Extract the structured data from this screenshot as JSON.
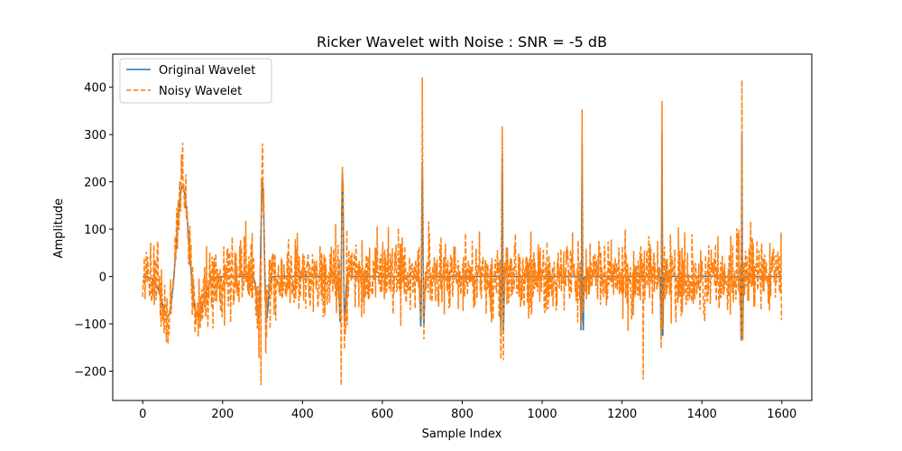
{
  "chart_data": {
    "type": "line",
    "title": "Ricker Wavelet with Noise : SNR = -5 dB",
    "xlabel": "Sample Index",
    "ylabel": "Amplitude",
    "xlim": [
      -75,
      1675
    ],
    "ylim": [
      -262,
      470
    ],
    "xticks": [
      0,
      200,
      400,
      600,
      800,
      1000,
      1200,
      1400,
      1600
    ],
    "yticks": [
      -200,
      -100,
      0,
      100,
      200,
      300,
      400
    ],
    "grid": false,
    "legend_position": "top-left",
    "n_samples": 1600,
    "series": [
      {
        "name": "Original Wavelet",
        "color": "#1f77b4",
        "style": "solid",
        "wavelet_centers": [
          100,
          300,
          500,
          700,
          900,
          1100,
          1300,
          1500
        ],
        "wavelet_peaks": [
          190,
          200,
          220,
          240,
          260,
          280,
          300,
          300
        ]
      },
      {
        "name": "Noisy Wavelet",
        "color": "#ff7f0e",
        "style": "dashed",
        "highlighted_points": [
          {
            "x": 100,
            "y": 283
          },
          {
            "x": 296,
            "y": -230
          },
          {
            "x": 300,
            "y": 281
          },
          {
            "x": 497,
            "y": -230
          },
          {
            "x": 500,
            "y": 232
          },
          {
            "x": 700,
            "y": 421
          },
          {
            "x": 900,
            "y": 317
          },
          {
            "x": 1100,
            "y": 353
          },
          {
            "x": 1253,
            "y": -218
          },
          {
            "x": 1300,
            "y": 371
          },
          {
            "x": 1500,
            "y": 415
          }
        ]
      }
    ]
  }
}
